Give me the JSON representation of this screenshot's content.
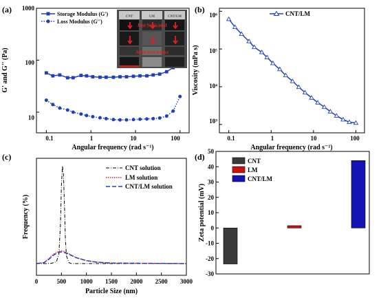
{
  "panels": {
    "a": "(a)",
    "b": "(b)",
    "c": "(c)",
    "d": "(d)"
  },
  "inset": {
    "vial_labels": [
      "CNT",
      "LM",
      "CNT/LM"
    ],
    "top_caption": "Just Sonicated",
    "bottom_caption": "After two weeks"
  },
  "chart_data": [
    {
      "panel": "a",
      "type": "line",
      "xlabel": "Angular frequency (rad s⁻¹)",
      "ylabel": "G' and G'' (Pa)",
      "x_scale": "log",
      "y_scale": "log",
      "xlim": [
        0.06,
        160
      ],
      "ylim": [
        4,
        1000
      ],
      "xticks": [
        "0.1",
        "1",
        "10",
        "100"
      ],
      "yticks": [
        "10",
        "100",
        "1000"
      ],
      "legend": "top-left",
      "colors": {
        "series": "#1f3fbf"
      },
      "series": [
        {
          "name": "Storage Modulus (G')",
          "line": "solid",
          "x": [
            0.1,
            0.14,
            0.2,
            0.3,
            0.4,
            0.6,
            0.8,
            1.1,
            1.6,
            2.2,
            3.2,
            4.5,
            6.3,
            9,
            12.6,
            18,
            25,
            35,
            50,
            70,
            100
          ],
          "y": [
            57,
            50,
            52,
            46,
            46,
            51,
            50,
            48,
            47,
            47,
            47,
            48,
            48,
            49,
            50,
            50,
            52,
            54,
            60,
            72,
            102
          ]
        },
        {
          "name": "Loss Modulus (G'')",
          "line": "dotted",
          "x": [
            0.1,
            0.14,
            0.2,
            0.3,
            0.4,
            0.6,
            0.8,
            1.1,
            1.6,
            2.2,
            3.2,
            4.5,
            6.3,
            9,
            12.6,
            18,
            25,
            35,
            50,
            70,
            100
          ],
          "y": [
            17,
            14,
            12,
            11,
            10,
            9.2,
            8.6,
            8.2,
            7.8,
            7.5,
            7.2,
            7.1,
            7.1,
            7.2,
            7.3,
            7.4,
            7.5,
            7.7,
            8.4,
            10.5,
            20
          ]
        }
      ]
    },
    {
      "panel": "b",
      "type": "line",
      "xlabel": "Angular frequency (rad s⁻¹)",
      "ylabel": "Viscosity (mPa s)",
      "x_scale": "log",
      "y_scale": "log",
      "xlim": [
        0.06,
        160
      ],
      "ylim": [
        600,
        1200000
      ],
      "xticks": [
        "0.1",
        "1",
        "10",
        "100"
      ],
      "yticks": [
        "10³",
        "10⁴",
        "10⁵",
        "10⁶"
      ],
      "legend": "top-right",
      "colors": {
        "series": "#1f3fbf"
      },
      "series": [
        {
          "name": "CNT/LM",
          "line": "solid",
          "marker": "open-triangle",
          "x": [
            0.1,
            0.14,
            0.2,
            0.3,
            0.4,
            0.6,
            0.8,
            1.1,
            1.6,
            2.2,
            3.2,
            4.5,
            6.3,
            9,
            12.6,
            18,
            25,
            35,
            50,
            70,
            100
          ],
          "y": [
            620000,
            380000,
            250000,
            160000,
            112000,
            82000,
            60000,
            42000,
            29000,
            20000,
            14000,
            9800,
            7000,
            5100,
            3800,
            2900,
            2200,
            1700,
            1350,
            1150,
            1100
          ]
        }
      ]
    },
    {
      "panel": "c",
      "type": "line",
      "xlabel": "Particle Size  (nm)",
      "ylabel": "Frequency (%)",
      "xlim": [
        0,
        3000
      ],
      "xticks": [
        "0",
        "500",
        "1000",
        "1500",
        "2000",
        "2500",
        "3000"
      ],
      "legend": "top-right",
      "series": [
        {
          "name": "CNT solution",
          "line": "dash-dot",
          "color": "#000000",
          "x": [
            0,
            200,
            300,
            400,
            450,
            480,
            500,
            520,
            540,
            560,
            580,
            600,
            650,
            700,
            3000
          ],
          "y": [
            0,
            0,
            0.3,
            2,
            10,
            40,
            80,
            100,
            92,
            60,
            25,
            8,
            1,
            0,
            0
          ]
        },
        {
          "name": "LM solution",
          "line": "dotted",
          "color": "#dd2222",
          "x": [
            0,
            150,
            250,
            350,
            450,
            500,
            550,
            650,
            800,
            1000,
            1200,
            1500,
            3000
          ],
          "y": [
            0,
            1,
            5,
            10,
            12.5,
            13,
            12.5,
            10,
            6,
            3,
            1.5,
            0.5,
            0
          ]
        },
        {
          "name": "CNT/LM solution",
          "line": "dashed",
          "color": "#1f3fbf",
          "x": [
            0,
            150,
            250,
            350,
            450,
            500,
            550,
            650,
            800,
            1000,
            1200,
            1500,
            3000
          ],
          "y": [
            0,
            1,
            4.5,
            9,
            11.5,
            12,
            11.5,
            9.5,
            6,
            3,
            1.5,
            0.5,
            0
          ]
        }
      ]
    },
    {
      "panel": "d",
      "type": "bar",
      "ylabel": "Zeta potential (mV)",
      "ylim": [
        -30,
        50
      ],
      "yticks": [
        "-30",
        "-20",
        "-10",
        "0",
        "10",
        "20",
        "30",
        "40",
        "50"
      ],
      "legend": "top-left",
      "categories": [
        "CNT",
        "LM",
        "CNT/LM"
      ],
      "values": [
        -23.5,
        1.5,
        44
      ],
      "colors": [
        "#3a3a3a",
        "#cc1111",
        "#1414b4"
      ]
    }
  ]
}
